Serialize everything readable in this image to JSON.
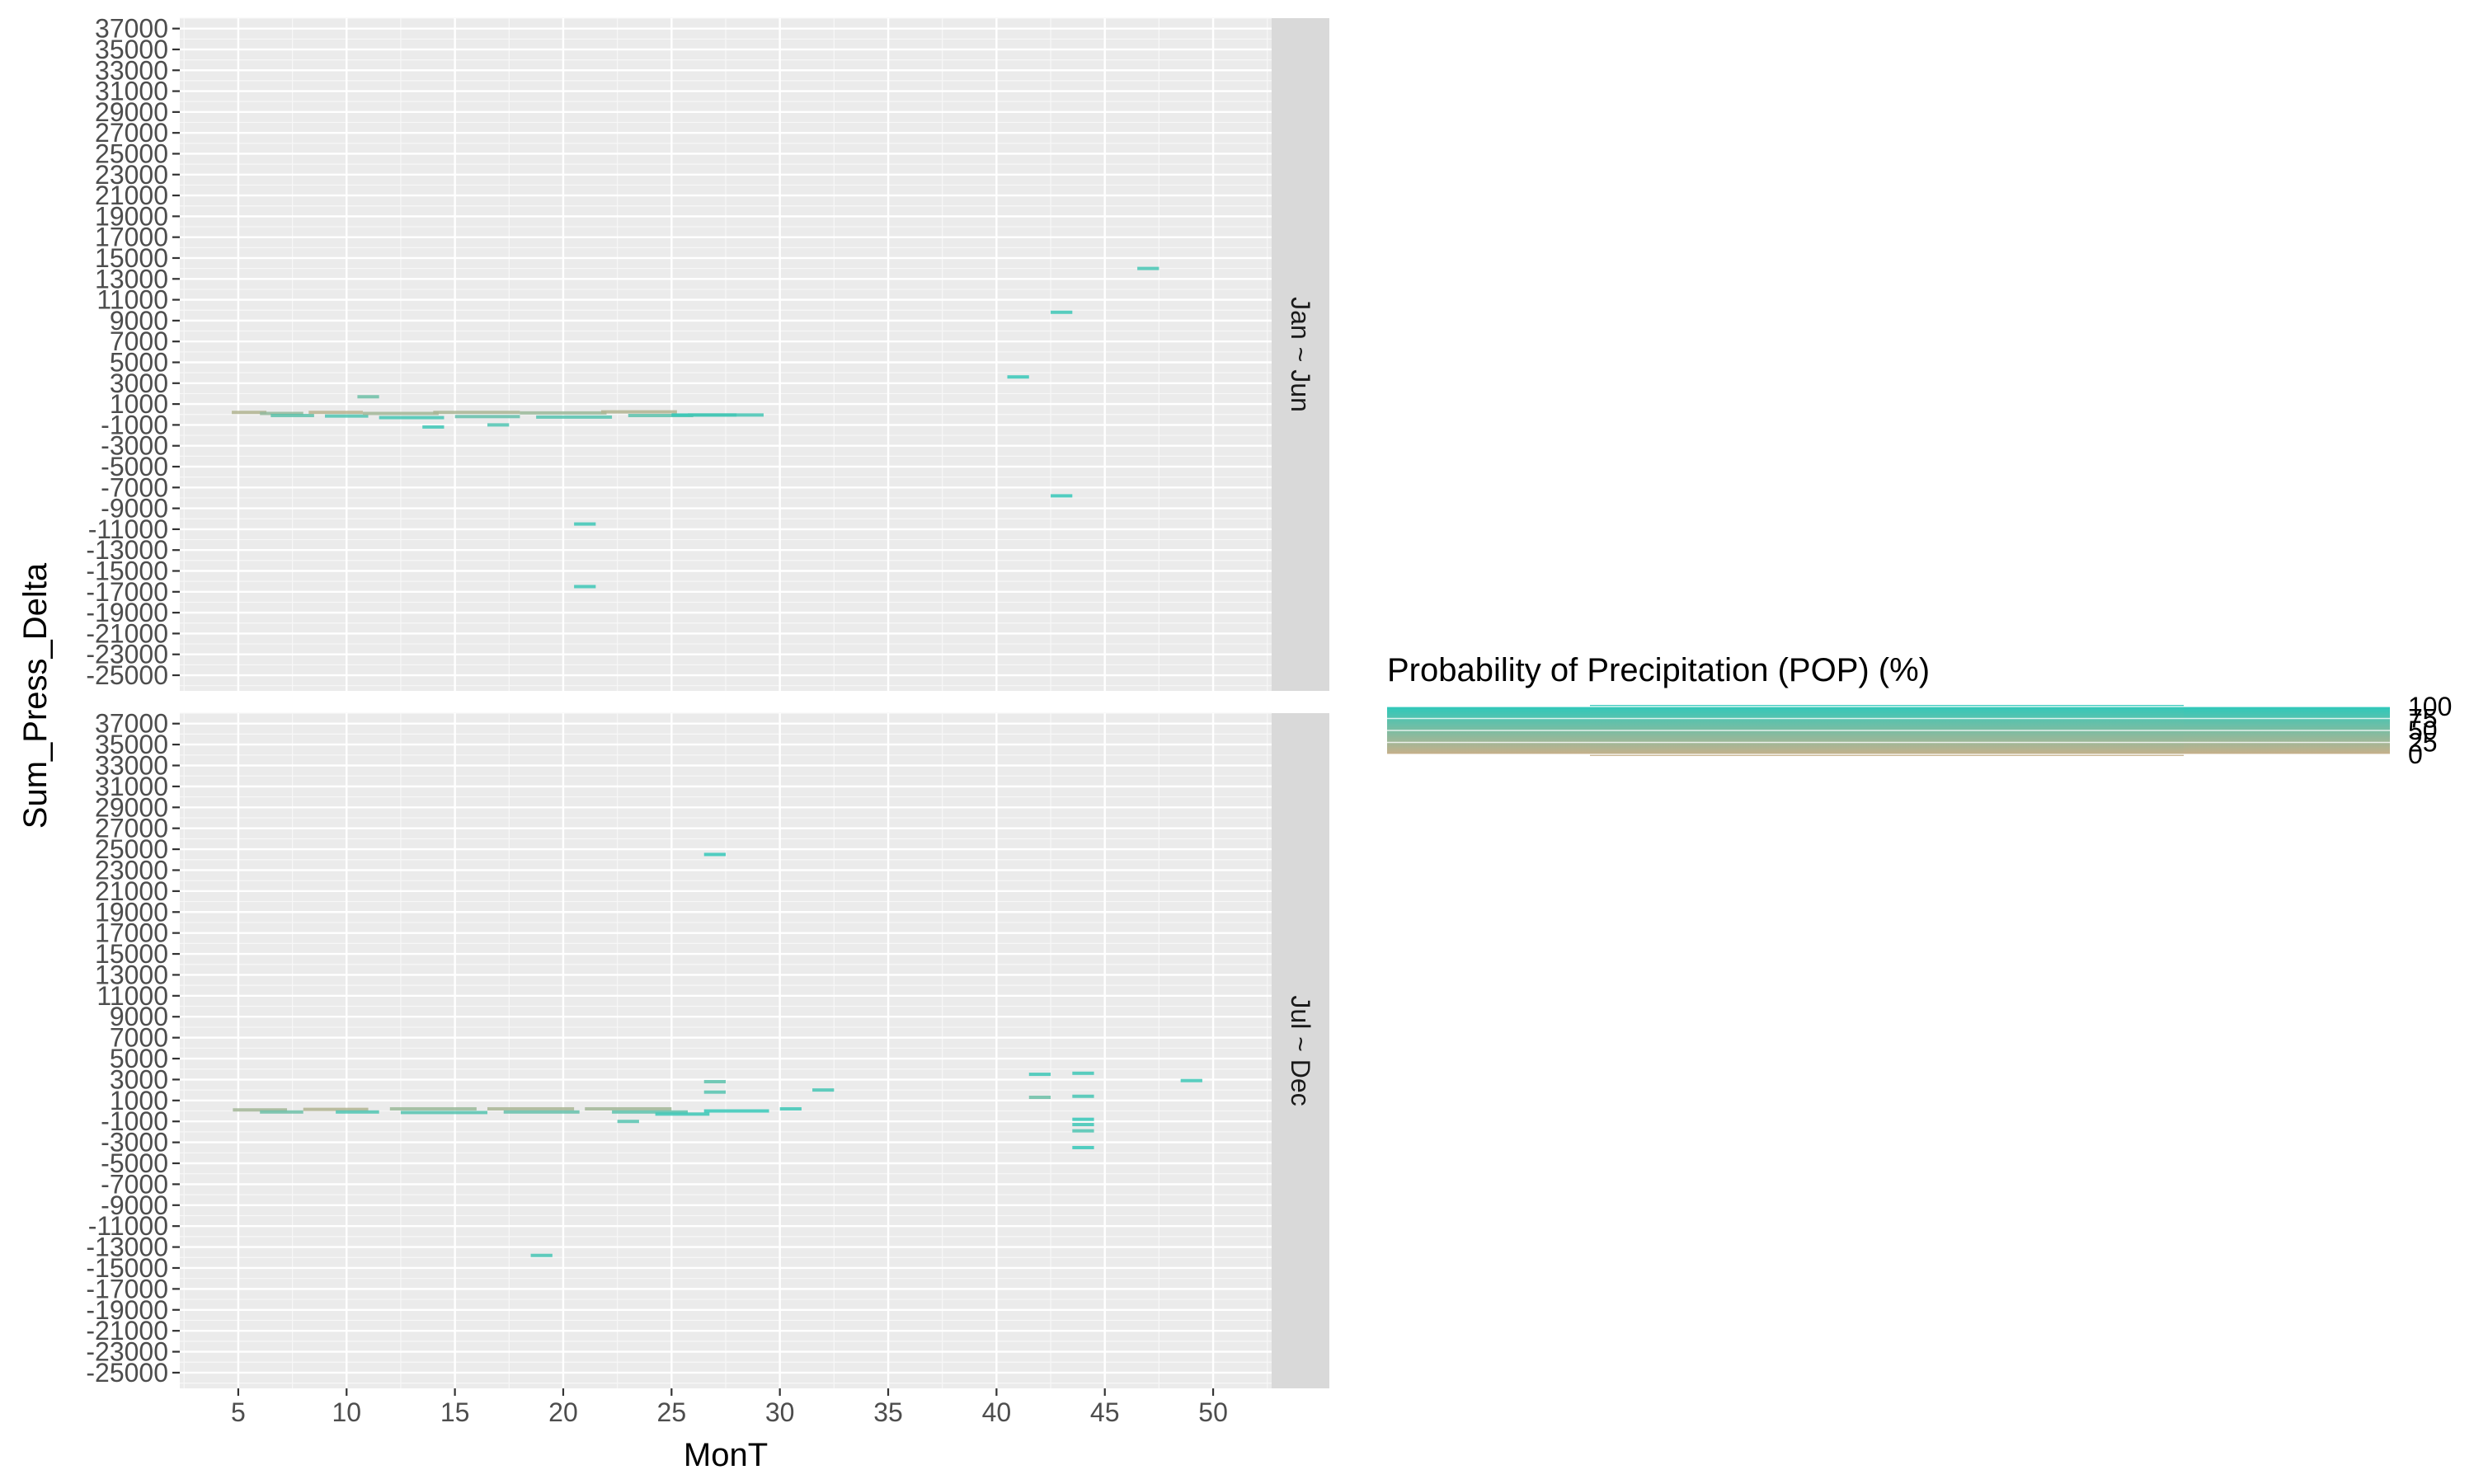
{
  "chart_data": {
    "type": "heatmap",
    "xlabel": "MonT",
    "ylabel": "Sum_Press_Delta",
    "xlim": [
      2.3,
      52.7
    ],
    "ylim": [
      -26500,
      38000
    ],
    "x_ticks": [
      5,
      10,
      15,
      20,
      25,
      30,
      35,
      40,
      45,
      50
    ],
    "x_tick_labels": [
      "5",
      "10",
      "15",
      "20",
      "25",
      "30",
      "35",
      "40",
      "45",
      "50"
    ],
    "y_ticks": [
      37000,
      35000,
      33000,
      31000,
      29000,
      27000,
      25000,
      23000,
      21000,
      19000,
      17000,
      15000,
      13000,
      11000,
      9000,
      7000,
      5000,
      3000,
      1000,
      -1000,
      -3000,
      -5000,
      -7000,
      -9000,
      -11000,
      -13000,
      -15000,
      -17000,
      -19000,
      -21000,
      -23000,
      -25000
    ],
    "y_tick_labels": [
      "37000",
      "35000",
      "33000",
      "31000",
      "29000",
      "27000",
      "25000",
      "23000",
      "21000",
      "19000",
      "17000",
      "15000",
      "13000",
      "11000",
      "9000",
      "7000",
      "5000",
      "3000",
      "1000",
      "-1000",
      "-3000",
      "-5000",
      "-7000",
      "-9000",
      "-11000",
      "-13000",
      "-15000",
      "-17000",
      "-19000",
      "-21000",
      "-23000",
      "-25000"
    ],
    "grid": true,
    "facet_labels": [
      "Jan ~ Jun",
      "Jul ~ Dec"
    ],
    "legend": {
      "title": "Probability of Precipitation (POP) (%)",
      "placement": "right",
      "breaks": [
        0,
        25,
        50,
        75,
        100
      ],
      "break_labels": [
        "0",
        "25",
        "50",
        "75",
        "100"
      ],
      "low_color": "#c8b08a",
      "high_color": "#2ec9bb"
    },
    "panels": [
      {
        "facet": "Jan ~ Jun",
        "cells": [
          {
            "x": 5.5,
            "w": 1.6,
            "y": 200,
            "pop": 15
          },
          {
            "x": 7.0,
            "w": 2.0,
            "y": 100,
            "pop": 35
          },
          {
            "x": 7.5,
            "w": 2.0,
            "y": -100,
            "pop": 70
          },
          {
            "x": 9.5,
            "w": 2.5,
            "y": 200,
            "pop": 10
          },
          {
            "x": 10.0,
            "w": 2.0,
            "y": -150,
            "pop": 80
          },
          {
            "x": 11.0,
            "w": 1.0,
            "y": 1700,
            "pop": 60
          },
          {
            "x": 12.5,
            "w": 3.5,
            "y": 100,
            "pop": 25
          },
          {
            "x": 13.0,
            "w": 3.0,
            "y": -300,
            "pop": 85
          },
          {
            "x": 14.0,
            "w": 1.0,
            "y": -1200,
            "pop": 90
          },
          {
            "x": 16.0,
            "w": 4.0,
            "y": 200,
            "pop": 20
          },
          {
            "x": 16.5,
            "w": 3.0,
            "y": -200,
            "pop": 65
          },
          {
            "x": 17.0,
            "w": 1.0,
            "y": -1000,
            "pop": 80
          },
          {
            "x": 20.0,
            "w": 4.0,
            "y": 150,
            "pop": 30
          },
          {
            "x": 20.5,
            "w": 3.5,
            "y": -250,
            "pop": 75
          },
          {
            "x": 21.0,
            "w": 1.0,
            "y": -10500,
            "pop": 90
          },
          {
            "x": 21.0,
            "w": 1.0,
            "y": -16500,
            "pop": 90
          },
          {
            "x": 23.5,
            "w": 3.5,
            "y": 250,
            "pop": 15
          },
          {
            "x": 24.5,
            "w": 3.0,
            "y": -100,
            "pop": 70
          },
          {
            "x": 26.5,
            "w": 3.0,
            "y": -50,
            "pop": 95
          },
          {
            "x": 27.5,
            "w": 3.5,
            "y": -50,
            "pop": 85
          },
          {
            "x": 41.0,
            "w": 1.0,
            "y": 3600,
            "pop": 95
          },
          {
            "x": 43.0,
            "w": 1.0,
            "y": 9800,
            "pop": 90
          },
          {
            "x": 43.0,
            "w": 1.0,
            "y": -7800,
            "pop": 95
          },
          {
            "x": 47.0,
            "w": 1.0,
            "y": 14000,
            "pop": 85
          }
        ]
      },
      {
        "facet": "Jul ~ Dec",
        "cells": [
          {
            "x": 6.0,
            "w": 2.5,
            "y": 100,
            "pop": 25
          },
          {
            "x": 7.0,
            "w": 2.0,
            "y": -100,
            "pop": 60
          },
          {
            "x": 9.5,
            "w": 3.0,
            "y": 150,
            "pop": 15
          },
          {
            "x": 10.5,
            "w": 2.0,
            "y": -100,
            "pop": 80
          },
          {
            "x": 14.0,
            "w": 4.0,
            "y": 200,
            "pop": 30
          },
          {
            "x": 14.5,
            "w": 4.0,
            "y": -150,
            "pop": 75
          },
          {
            "x": 18.5,
            "w": 4.0,
            "y": 200,
            "pop": 20
          },
          {
            "x": 19.0,
            "w": 3.5,
            "y": -100,
            "pop": 65
          },
          {
            "x": 19.0,
            "w": 1.0,
            "y": -13800,
            "pop": 85
          },
          {
            "x": 23.0,
            "w": 1.0,
            "y": -1000,
            "pop": 75
          },
          {
            "x": 23.0,
            "w": 4.0,
            "y": 200,
            "pop": 25
          },
          {
            "x": 24.0,
            "w": 3.5,
            "y": -100,
            "pop": 70
          },
          {
            "x": 25.5,
            "w": 2.5,
            "y": -300,
            "pop": 90
          },
          {
            "x": 27.0,
            "w": 1.0,
            "y": 24500,
            "pop": 95
          },
          {
            "x": 27.0,
            "w": 1.0,
            "y": 2800,
            "pop": 70
          },
          {
            "x": 27.0,
            "w": 1.0,
            "y": 1800,
            "pop": 75
          },
          {
            "x": 28.0,
            "w": 3.0,
            "y": 0,
            "pop": 95
          },
          {
            "x": 30.5,
            "w": 1.0,
            "y": 200,
            "pop": 90
          },
          {
            "x": 32.0,
            "w": 1.0,
            "y": 2000,
            "pop": 85
          },
          {
            "x": 42.0,
            "w": 1.0,
            "y": 3500,
            "pop": 90
          },
          {
            "x": 42.0,
            "w": 1.0,
            "y": 1300,
            "pop": 60
          },
          {
            "x": 44.0,
            "w": 1.0,
            "y": 3600,
            "pop": 90
          },
          {
            "x": 44.0,
            "w": 1.0,
            "y": 1400,
            "pop": 85
          },
          {
            "x": 44.0,
            "w": 1.0,
            "y": -800,
            "pop": 95
          },
          {
            "x": 44.0,
            "w": 1.0,
            "y": -1300,
            "pop": 90
          },
          {
            "x": 44.0,
            "w": 1.0,
            "y": -1900,
            "pop": 80
          },
          {
            "x": 44.0,
            "w": 1.0,
            "y": -3500,
            "pop": 95
          },
          {
            "x": 49.0,
            "w": 1.0,
            "y": 2900,
            "pop": 90
          }
        ]
      }
    ]
  }
}
